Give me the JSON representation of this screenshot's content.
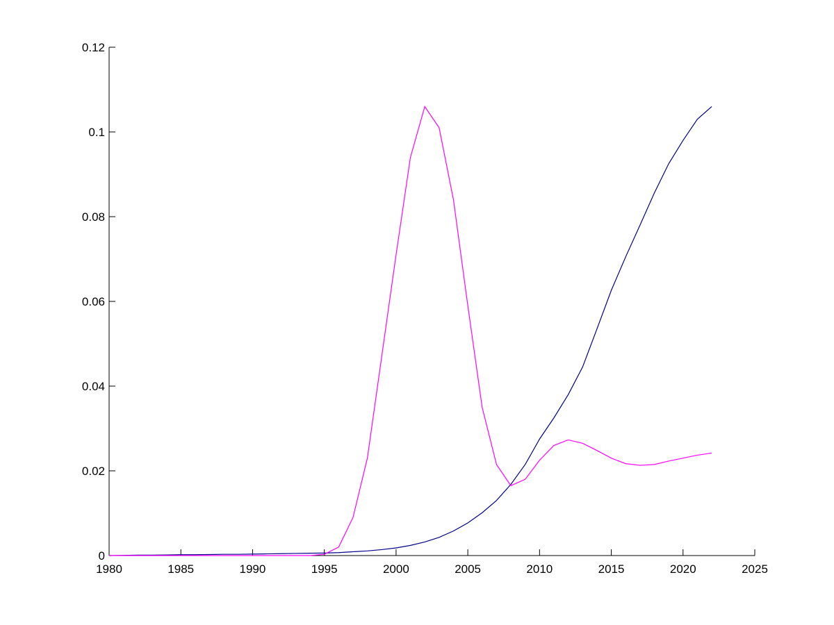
{
  "chart_data": {
    "type": "line",
    "x": [
      1980,
      1981,
      1982,
      1983,
      1984,
      1985,
      1986,
      1987,
      1988,
      1989,
      1990,
      1991,
      1992,
      1993,
      1994,
      1995,
      1996,
      1997,
      1998,
      1999,
      2000,
      2001,
      2002,
      2003,
      2004,
      2005,
      2006,
      2007,
      2008,
      2009,
      2010,
      2011,
      2012,
      2013,
      2014,
      2015,
      2016,
      2017,
      2018,
      2019,
      2020,
      2021,
      2022
    ],
    "series": [
      {
        "color": "#00008b",
        "values": [
          0,
          5e-05,
          0.0001,
          0.0001,
          0.00015,
          0.0002,
          0.0002,
          0.00025,
          0.0003,
          0.0003,
          0.00035,
          0.0004,
          0.00045,
          0.0005,
          0.00055,
          0.0006,
          0.0007,
          0.0009,
          0.0011,
          0.0014,
          0.0018,
          0.0024,
          0.0032,
          0.0043,
          0.0058,
          0.0077,
          0.0101,
          0.013,
          0.0168,
          0.0215,
          0.0275,
          0.0325,
          0.038,
          0.0445,
          0.0535,
          0.0626,
          0.0705,
          0.078,
          0.0856,
          0.0925,
          0.098,
          0.103,
          0.106
        ]
      },
      {
        "color": "#ff00ff",
        "values": [
          0,
          0,
          0,
          0,
          0,
          0,
          0,
          0,
          0,
          0,
          0,
          0,
          0,
          0,
          0,
          0.0003,
          0.002,
          0.009,
          0.023,
          0.047,
          0.071,
          0.094,
          0.106,
          0.101,
          0.084,
          0.059,
          0.035,
          0.0215,
          0.0165,
          0.018,
          0.0225,
          0.026,
          0.0273,
          0.0265,
          0.0248,
          0.023,
          0.0217,
          0.0213,
          0.0215,
          0.0223,
          0.023,
          0.0237,
          0.0242
        ]
      }
    ],
    "xlim": [
      1980,
      2025
    ],
    "xticks": [
      1980,
      1985,
      1990,
      1995,
      2000,
      2005,
      2010,
      2015,
      2020,
      2025
    ],
    "ylim": [
      0,
      0.12
    ],
    "yticks": [
      0,
      0.02,
      0.04,
      0.06,
      0.08,
      0.1,
      0.12
    ]
  }
}
